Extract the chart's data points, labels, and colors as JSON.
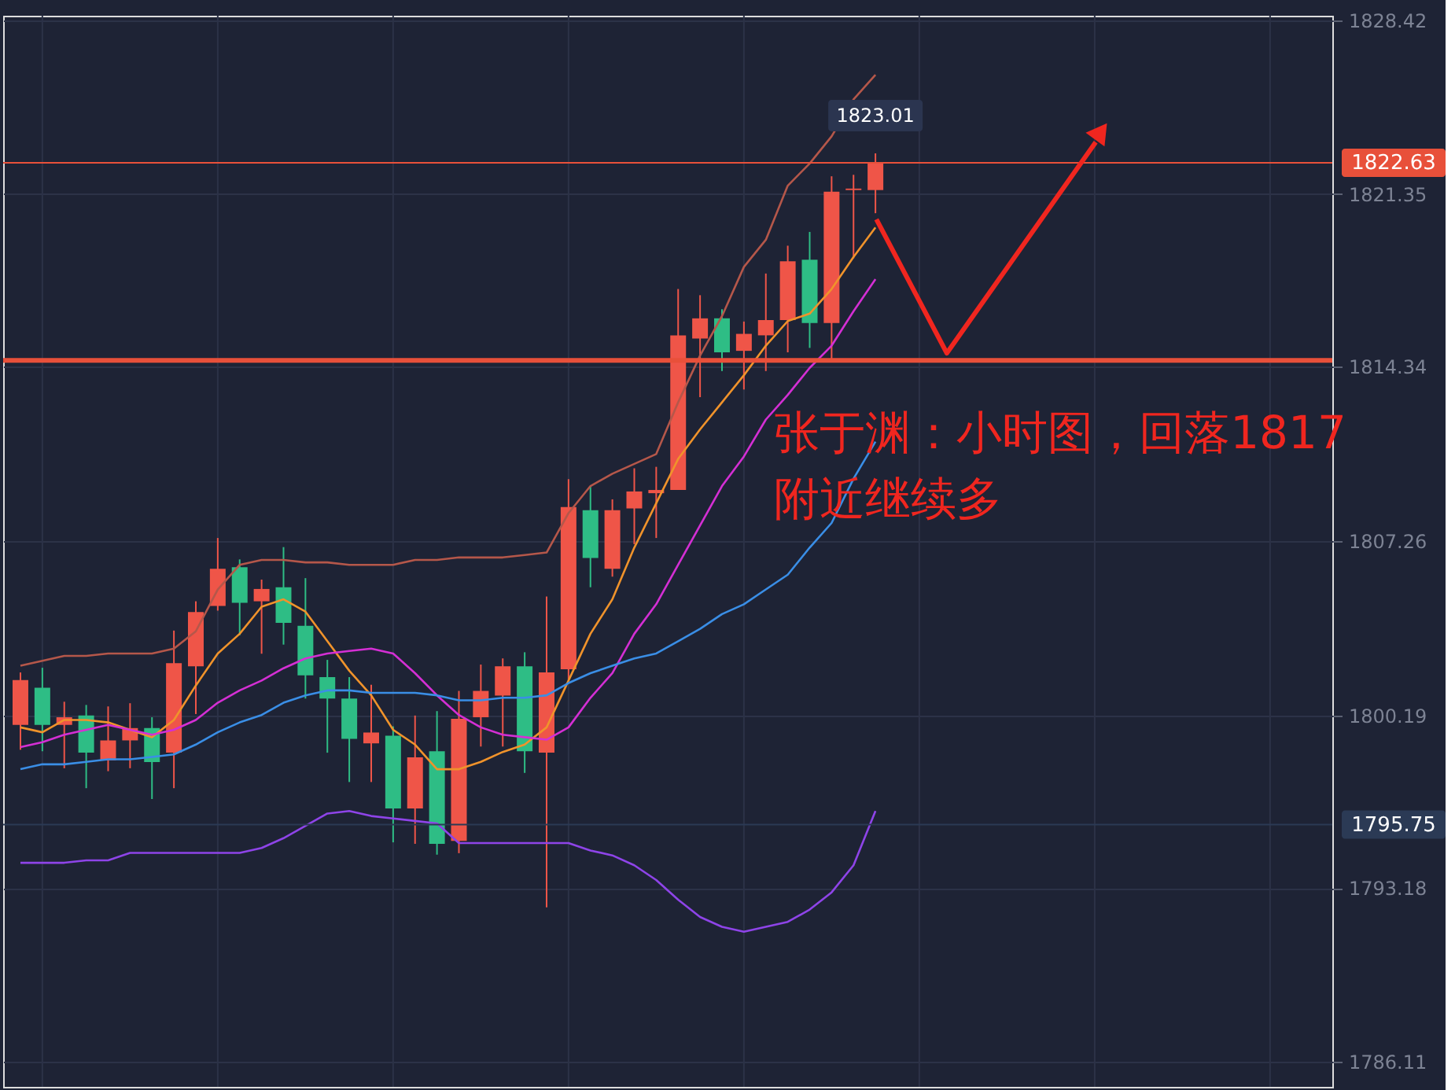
{
  "chart_data": {
    "type": "candlestick",
    "categories": [
      null,
      null,
      null,
      null,
      null,
      null,
      null,
      null,
      null,
      null,
      null,
      null,
      null,
      null,
      null,
      null,
      null,
      null,
      null,
      null,
      null,
      null,
      null,
      null,
      null,
      null,
      null,
      null,
      null,
      null,
      null,
      null,
      null,
      null,
      null,
      null,
      null,
      null,
      null,
      null
    ],
    "ohlc": [
      [
        1799.8,
        1801.93,
        1798.79,
        1801.62
      ],
      [
        1801.31,
        1802.12,
        1798.73,
        1799.8
      ],
      [
        1799.8,
        1800.74,
        1798.04,
        1800.11
      ],
      [
        1800.18,
        1800.61,
        1797.23,
        1798.67
      ],
      [
        1798.36,
        1800.55,
        1797.92,
        1799.17
      ],
      [
        1799.17,
        1800.68,
        1798.04,
        1799.67
      ],
      [
        1799.67,
        1800.11,
        1796.79,
        1798.29
      ],
      [
        1798.67,
        1803.63,
        1797.23,
        1802.31
      ],
      [
        1802.18,
        1804.82,
        1800.24,
        1804.38
      ],
      [
        1804.63,
        1807.39,
        1804.44,
        1806.14
      ],
      [
        1806.2,
        1806.52,
        1803.44,
        1804.76
      ],
      [
        1804.82,
        1805.7,
        1802.69,
        1805.32
      ],
      [
        1805.39,
        1807.02,
        1803.06,
        1803.94
      ],
      [
        1803.82,
        1805.76,
        1800.87,
        1801.81
      ],
      [
        1801.74,
        1802.44,
        1798.67,
        1800.87
      ],
      [
        1800.87,
        1801.74,
        1797.48,
        1799.23
      ],
      [
        1799.05,
        1801.43,
        1797.48,
        1799.49
      ],
      [
        1799.36,
        1799.74,
        1795.03,
        1796.41
      ],
      [
        1796.41,
        1800.18,
        1794.97,
        1798.48
      ],
      [
        1798.73,
        1800.36,
        1794.53,
        1794.97
      ],
      [
        1795.09,
        1801.18,
        1794.59,
        1800.05
      ],
      [
        1800.11,
        1802.25,
        1798.92,
        1801.18
      ],
      [
        1800.99,
        1802.5,
        1798.92,
        1802.18
      ],
      [
        1802.18,
        1802.75,
        1797.85,
        1798.73
      ],
      [
        1798.67,
        1805.01,
        1792.39,
        1801.93
      ],
      [
        1802.06,
        1809.78,
        1801.62,
        1808.65
      ],
      [
        1808.52,
        1809.47,
        1805.39,
        1806.58
      ],
      [
        1806.14,
        1808.96,
        1805.82,
        1808.52
      ],
      [
        1808.59,
        1810.22,
        1807.14,
        1809.28
      ],
      [
        1809.21,
        1810.28,
        1807.39,
        1809.34
      ],
      [
        1809.34,
        1817.5,
        1809.34,
        1815.62
      ],
      [
        1815.49,
        1817.25,
        1813.11,
        1816.31
      ],
      [
        1816.31,
        1816.68,
        1814.17,
        1814.93
      ],
      [
        1814.99,
        1816.18,
        1813.42,
        1815.68
      ],
      [
        1815.62,
        1818.13,
        1814.17,
        1816.24
      ],
      [
        1816.24,
        1819.26,
        1814.93,
        1818.63
      ],
      [
        1818.69,
        1819.82,
        1815.11,
        1816.12
      ],
      [
        1816.12,
        1822.08,
        1814.61,
        1821.45
      ],
      [
        1821.52,
        1822.14,
        1818.75,
        1821.58
      ],
      [
        1821.52,
        1823.01,
        1820.58,
        1822.63
      ]
    ],
    "colors": [
      "#ef5548",
      "#2ebd85",
      "#ef5548",
      "#2ebd85",
      "#ef5548",
      "#ef5548",
      "#2ebd85",
      "#ef5548",
      "#ef5548",
      "#ef5548",
      "#2ebd85",
      "#ef5548",
      "#2ebd85",
      "#2ebd85",
      "#2ebd85",
      "#2ebd85",
      "#ef5548",
      "#2ebd85",
      "#ef5548",
      "#2ebd85",
      "#ef5548",
      "#ef5548",
      "#ef5548",
      "#2ebd85",
      "#ef5548",
      "#ef5548",
      "#2ebd85",
      "#ef5548",
      "#ef5548",
      "#ef5548",
      "#ef5548",
      "#ef5548",
      "#2ebd85",
      "#ef5548",
      "#ef5548",
      "#ef5548",
      "#2ebd85",
      "#ef5548",
      "#ef5548",
      "#ef5548"
    ],
    "series": [
      {
        "type": "line",
        "color": "#b5574a",
        "values": [
          1802.2,
          1802.4,
          1802.6,
          1802.6,
          1802.7,
          1802.7,
          1802.7,
          1802.9,
          1803.6,
          1805.3,
          1806.3,
          1806.5,
          1806.5,
          1806.4,
          1806.4,
          1806.3,
          1806.3,
          1806.3,
          1806.5,
          1806.5,
          1806.6,
          1806.6,
          1806.6,
          1806.7,
          1806.8,
          1808.4,
          1809.5,
          1810.0,
          1810.4,
          1810.8,
          1812.9,
          1814.8,
          1816.4,
          1818.4,
          1819.5,
          1821.7,
          1822.6,
          1823.7,
          1825.2,
          1826.2
        ]
      },
      {
        "type": "line",
        "color": "#f0932b",
        "values": [
          1799.7,
          1799.5,
          1800.0,
          1800.0,
          1799.9,
          1799.6,
          1799.3,
          1800.0,
          1801.4,
          1802.7,
          1803.5,
          1804.6,
          1804.9,
          1804.4,
          1803.2,
          1802.0,
          1801.0,
          1799.6,
          1799.0,
          1798.0,
          1798.0,
          1798.3,
          1798.7,
          1799.0,
          1799.7,
          1801.6,
          1803.5,
          1804.9,
          1807.0,
          1808.8,
          1810.6,
          1811.8,
          1812.9,
          1814.0,
          1815.2,
          1816.2,
          1816.5,
          1817.5,
          1818.8,
          1820.0
        ]
      },
      {
        "type": "line",
        "color": "#d42fd4",
        "values": [
          1798.9,
          1799.1,
          1799.4,
          1799.6,
          1799.8,
          1799.6,
          1799.4,
          1799.6,
          1800.0,
          1800.7,
          1801.2,
          1801.6,
          1802.1,
          1802.5,
          1802.7,
          1802.8,
          1802.9,
          1802.7,
          1801.9,
          1801.0,
          1800.2,
          1799.7,
          1799.4,
          1799.3,
          1799.2,
          1799.7,
          1800.9,
          1801.9,
          1803.5,
          1804.7,
          1806.3,
          1807.9,
          1809.5,
          1810.7,
          1812.2,
          1813.2,
          1814.3,
          1815.2,
          1816.6,
          1817.9
        ]
      },
      {
        "type": "line",
        "color": "#3a8ee6",
        "values": [
          1798.0,
          1798.2,
          1798.2,
          1798.3,
          1798.4,
          1798.4,
          1798.5,
          1798.6,
          1799.0,
          1799.5,
          1799.9,
          1800.2,
          1800.7,
          1801.0,
          1801.2,
          1801.2,
          1801.1,
          1801.1,
          1801.1,
          1801.0,
          1800.8,
          1800.8,
          1800.9,
          1800.9,
          1801.0,
          1801.5,
          1801.9,
          1802.2,
          1802.5,
          1802.7,
          1803.2,
          1803.7,
          1804.3,
          1804.7,
          1805.3,
          1805.9,
          1807.0,
          1808.0,
          1809.8,
          1811.3
        ]
      },
      {
        "type": "line",
        "color": "#8e44e8",
        "values": [
          1794.2,
          1794.2,
          1794.2,
          1794.3,
          1794.3,
          1794.6,
          1794.6,
          1794.6,
          1794.6,
          1794.6,
          1794.6,
          1794.8,
          1795.2,
          1795.7,
          1796.2,
          1796.3,
          1796.1,
          1796.0,
          1795.9,
          1795.8,
          1795.0,
          1795.0,
          1795.0,
          1795.0,
          1795.0,
          1795.0,
          1794.7,
          1794.5,
          1794.1,
          1793.5,
          1792.7,
          1792.0,
          1791.6,
          1791.4,
          1791.6,
          1791.8,
          1792.3,
          1793.0,
          1794.1,
          1796.3
        ]
      }
    ],
    "ylim": [
      1785.1,
      1828.6
    ],
    "yticks": [
      1786.11,
      1793.18,
      1800.19,
      1807.26,
      1814.34,
      1821.35,
      1828.42
    ],
    "tick_labels": "y",
    "grid": true,
    "ref_lines": [
      {
        "axis": "y",
        "value": 1814.6,
        "color": "#e8503a"
      },
      {
        "axis": "y",
        "value": 1822.63,
        "label": "1822.63",
        "color": "#e8503a"
      },
      {
        "axis": "y",
        "value": 1795.75,
        "label": "1795.75",
        "color": "#2b3a55"
      }
    ],
    "annotations": [
      {
        "text": "1823.01",
        "y": 1823.01
      },
      "张于渊：小时图，回落1817\n附近继续多"
    ]
  }
}
